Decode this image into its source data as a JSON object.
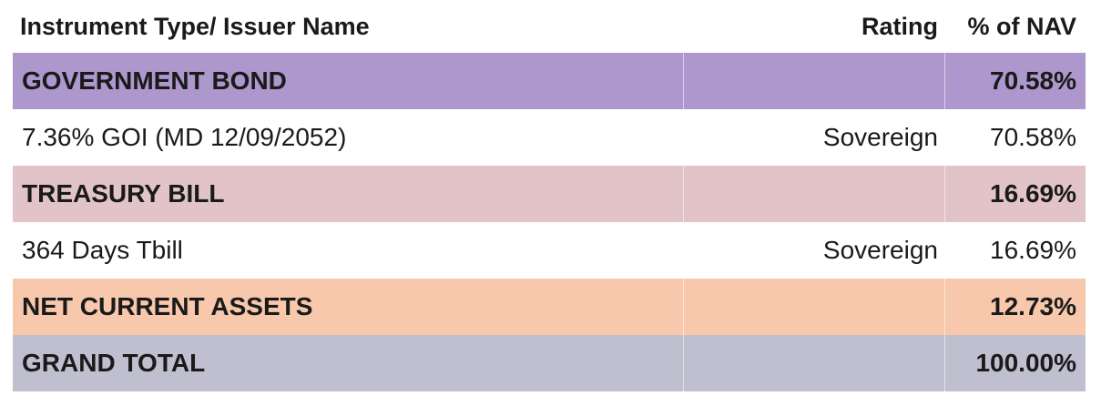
{
  "header": {
    "col_name": "Instrument Type/ Issuer Name",
    "col_rating": "Rating",
    "col_nav": "% of NAV"
  },
  "rows": [
    {
      "name": "GOVERNMENT BOND",
      "rating": "",
      "nav": "70.58%",
      "kind": "section",
      "color": "#ad97cc"
    },
    {
      "name": "7.36% GOI (MD 12/09/2052)",
      "rating": "Sovereign",
      "nav": "70.58%",
      "kind": "item",
      "color": "#ffffff"
    },
    {
      "name": "TREASURY BILL",
      "rating": "",
      "nav": "16.69%",
      "kind": "section",
      "color": "#e2c4c8"
    },
    {
      "name": "364 Days Tbill",
      "rating": "Sovereign",
      "nav": "16.69%",
      "kind": "item",
      "color": "#ffffff"
    },
    {
      "name": "NET CURRENT ASSETS",
      "rating": "",
      "nav": "12.73%",
      "kind": "section",
      "color": "#f8c8ac"
    },
    {
      "name": "GRAND TOTAL",
      "rating": "",
      "nav": "100.00%",
      "kind": "section",
      "color": "#c0bfd0"
    }
  ]
}
